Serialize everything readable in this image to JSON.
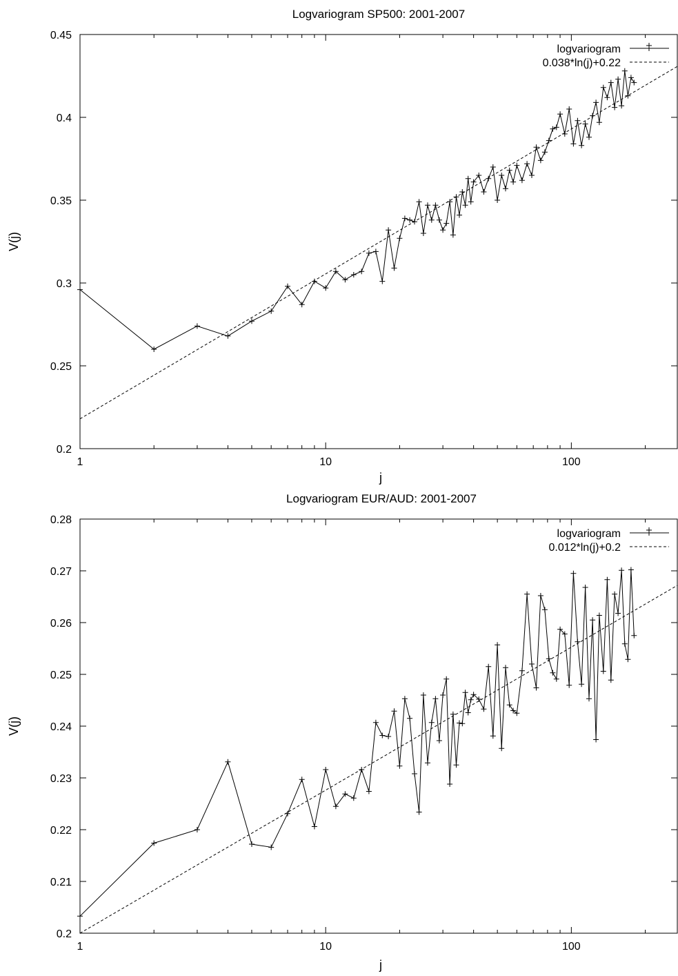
{
  "chart_data": [
    {
      "type": "line",
      "title": "Logvariogram SP500: 2001-2007",
      "xlabel": "j",
      "ylabel": "V(j)",
      "x_scale": "log",
      "xlim": [
        1,
        270
      ],
      "ylim": [
        0.2,
        0.45
      ],
      "xticks": [
        1,
        10,
        100
      ],
      "xtick_labels": [
        "1",
        "10",
        "100"
      ],
      "yticks": [
        0.2,
        0.25,
        0.3,
        0.35,
        0.4,
        0.45
      ],
      "ytick_labels": [
        "0.2",
        "0.25",
        "0.3",
        "0.35",
        "0.4",
        "0.45"
      ],
      "legend_position": "top-right",
      "series": [
        {
          "name": "logvariogram",
          "style": "line with + markers",
          "color": "#000000",
          "x": [
            1,
            2,
            3,
            4,
            5,
            6,
            7,
            8,
            9,
            10,
            11,
            12,
            13,
            14,
            15,
            16,
            17,
            18,
            19,
            20,
            21,
            22,
            23,
            24,
            25,
            26,
            27,
            28,
            29,
            30,
            31,
            32,
            33,
            34,
            35,
            36,
            37,
            38,
            39,
            40,
            42,
            44,
            46,
            48,
            50,
            52,
            54,
            56,
            58,
            60,
            63,
            66,
            69,
            72,
            75,
            78,
            81,
            84,
            87,
            90,
            94,
            98,
            102,
            106,
            110,
            114,
            118,
            122,
            126,
            130,
            135,
            140,
            145,
            150,
            155,
            160,
            165,
            170,
            175,
            180
          ],
          "y": [
            0.296,
            0.26,
            0.274,
            0.268,
            0.277,
            0.283,
            0.298,
            0.287,
            0.301,
            0.297,
            0.307,
            0.302,
            0.305,
            0.307,
            0.318,
            0.319,
            0.301,
            0.332,
            0.309,
            0.327,
            0.339,
            0.338,
            0.337,
            0.349,
            0.33,
            0.347,
            0.338,
            0.347,
            0.338,
            0.332,
            0.336,
            0.349,
            0.329,
            0.352,
            0.341,
            0.355,
            0.347,
            0.363,
            0.349,
            0.361,
            0.365,
            0.355,
            0.363,
            0.37,
            0.35,
            0.365,
            0.357,
            0.368,
            0.361,
            0.371,
            0.362,
            0.372,
            0.365,
            0.382,
            0.374,
            0.379,
            0.386,
            0.393,
            0.394,
            0.402,
            0.39,
            0.405,
            0.384,
            0.398,
            0.383,
            0.396,
            0.388,
            0.401,
            0.409,
            0.397,
            0.418,
            0.412,
            0.421,
            0.406,
            0.423,
            0.407,
            0.428,
            0.413,
            0.424,
            0.421
          ]
        },
        {
          "name": "0.038*ln(j)+0.22",
          "style": "dashed",
          "color": "#000000",
          "fit": {
            "slope": 0.038,
            "intercept": 0.218
          }
        }
      ]
    },
    {
      "type": "line",
      "title": "Logvariogram EUR/AUD: 2001-2007",
      "xlabel": "j",
      "ylabel": "V(j)",
      "x_scale": "log",
      "xlim": [
        1,
        270
      ],
      "ylim": [
        0.2,
        0.28
      ],
      "xticks": [
        1,
        10,
        100
      ],
      "xtick_labels": [
        "1",
        "10",
        "100"
      ],
      "yticks": [
        0.2,
        0.21,
        0.22,
        0.23,
        0.24,
        0.25,
        0.26,
        0.27,
        0.28
      ],
      "ytick_labels": [
        "0.2",
        "0.21",
        "0.22",
        "0.23",
        "0.24",
        "0.25",
        "0.26",
        "0.27",
        "0.28"
      ],
      "legend_position": "top-right",
      "series": [
        {
          "name": "logvariogram",
          "style": "line with + markers",
          "color": "#000000",
          "x": [
            1,
            2,
            3,
            4,
            5,
            6,
            7,
            8,
            9,
            10,
            11,
            12,
            13,
            14,
            15,
            16,
            17,
            18,
            19,
            20,
            21,
            22,
            23,
            24,
            25,
            26,
            27,
            28,
            29,
            30,
            31,
            32,
            33,
            34,
            35,
            36,
            37,
            38,
            39,
            40,
            42,
            44,
            46,
            48,
            50,
            52,
            54,
            56,
            58,
            60,
            63,
            66,
            69,
            72,
            75,
            78,
            81,
            84,
            87,
            90,
            94,
            98,
            102,
            106,
            110,
            114,
            118,
            122,
            126,
            130,
            135,
            140,
            145,
            150,
            155,
            160,
            165,
            170,
            175,
            180
          ],
          "y": [
            0.2033,
            0.2174,
            0.22,
            0.2331,
            0.2172,
            0.2166,
            0.2231,
            0.2297,
            0.2206,
            0.2316,
            0.2245,
            0.2269,
            0.2261,
            0.2316,
            0.2274,
            0.2407,
            0.2382,
            0.238,
            0.2429,
            0.2323,
            0.2453,
            0.2415,
            0.2308,
            0.2234,
            0.246,
            0.2329,
            0.2407,
            0.2453,
            0.2372,
            0.246,
            0.2491,
            0.2288,
            0.2423,
            0.2325,
            0.2406,
            0.2405,
            0.2465,
            0.2426,
            0.2451,
            0.2461,
            0.2452,
            0.2433,
            0.2515,
            0.2381,
            0.2557,
            0.2357,
            0.2513,
            0.2441,
            0.243,
            0.2425,
            0.2507,
            0.2655,
            0.252,
            0.2474,
            0.2652,
            0.2625,
            0.253,
            0.2503,
            0.2491,
            0.2587,
            0.2578,
            0.2479,
            0.2695,
            0.2563,
            0.2481,
            0.2668,
            0.2453,
            0.2605,
            0.2374,
            0.2614,
            0.2506,
            0.2683,
            0.2489,
            0.2655,
            0.2618,
            0.2701,
            0.2559,
            0.2529,
            0.2702,
            0.2575
          ]
        },
        {
          "name": "0.012*ln(j)+0.2",
          "style": "dashed",
          "color": "#000000",
          "fit": {
            "slope": 0.012,
            "intercept": 0.2
          }
        }
      ]
    }
  ]
}
